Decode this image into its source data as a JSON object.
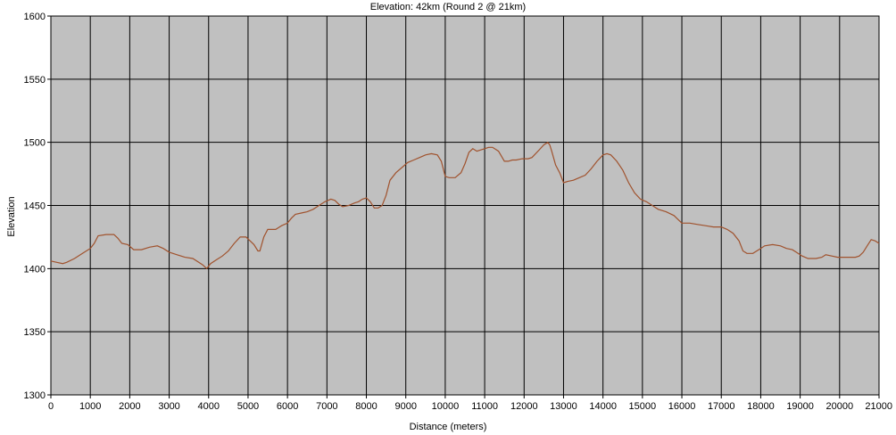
{
  "chart_data": {
    "type": "line",
    "title": "Elevation: 42km (Round 2 @ 21km)",
    "xlabel": "Distance (meters)",
    "ylabel": "Elevation",
    "xlim": [
      0,
      21000
    ],
    "ylim": [
      1300,
      1600
    ],
    "x_ticks": [
      "0",
      "1000",
      "2000",
      "3000",
      "4000",
      "5000",
      "6000",
      "7000",
      "8000",
      "9000",
      "10000",
      "11000",
      "12000",
      "13000",
      "14000",
      "15000",
      "16000",
      "17000",
      "18000",
      "19000",
      "20000",
      "21000"
    ],
    "y_ticks": [
      "1300",
      "1350",
      "1400",
      "1450",
      "1500",
      "1550",
      "1600"
    ],
    "grid": true,
    "plot_background": "#c0c0c0",
    "line_color": "#a0522d",
    "series": [
      {
        "x": [
          0,
          150,
          300,
          400,
          600,
          800,
          1000,
          1100,
          1200,
          1400,
          1600,
          1700,
          1800,
          1950,
          2100,
          2300,
          2500,
          2700,
          2850,
          3000,
          3200,
          3400,
          3600,
          3750,
          3850,
          3950,
          4050,
          4200,
          4350,
          4500,
          4650,
          4800,
          4950,
          5050,
          5150,
          5250,
          5300,
          5400,
          5500,
          5600,
          5700,
          5850,
          6000,
          6100,
          6200,
          6350,
          6500,
          6650,
          6800,
          6950,
          7100,
          7200,
          7300,
          7400,
          7550,
          7700,
          7800,
          7900,
          8000,
          8100,
          8200,
          8300,
          8400,
          8500,
          8600,
          8750,
          8900,
          9050,
          9200,
          9350,
          9500,
          9650,
          9800,
          9900,
          10000,
          10100,
          10250,
          10400,
          10500,
          10600,
          10700,
          10800,
          10900,
          11000,
          11100,
          11200,
          11350,
          11500,
          11600,
          11700,
          11800,
          11950,
          12100,
          12200,
          12350,
          12500,
          12600,
          12650,
          12700,
          12800,
          12900,
          13000,
          13100,
          13250,
          13400,
          13550,
          13700,
          13850,
          14000,
          14100,
          14200,
          14350,
          14500,
          14650,
          14800,
          14950,
          15100,
          15250,
          15400,
          15600,
          15800,
          16000,
          16200,
          16400,
          16600,
          16800,
          17000,
          17150,
          17300,
          17450,
          17550,
          17650,
          17800,
          17900,
          18000,
          18100,
          18300,
          18500,
          18650,
          18800,
          18900,
          19050,
          19200,
          19400,
          19550,
          19650,
          19800,
          19950,
          20100,
          20250,
          20400,
          20500,
          20600,
          20700,
          20800,
          20900,
          21000
        ],
        "values": [
          1406,
          1405,
          1404,
          1405,
          1408,
          1412,
          1416,
          1420,
          1426,
          1427,
          1427,
          1424,
          1420,
          1419,
          1415,
          1415,
          1417,
          1418,
          1416,
          1413,
          1411,
          1409,
          1408,
          1405,
          1403,
          1400,
          1404,
          1407,
          1410,
          1414,
          1420,
          1425,
          1425,
          1422,
          1419,
          1414,
          1414,
          1425,
          1431,
          1431,
          1431,
          1434,
          1436,
          1440,
          1443,
          1444,
          1445,
          1447,
          1450,
          1453,
          1455,
          1454,
          1451,
          1449,
          1450,
          1452,
          1453,
          1455,
          1456,
          1453,
          1448,
          1448,
          1450,
          1458,
          1470,
          1476,
          1480,
          1484,
          1486,
          1488,
          1490,
          1491,
          1490,
          1485,
          1473,
          1472,
          1472,
          1476,
          1483,
          1492,
          1495,
          1493,
          1494,
          1495,
          1496,
          1496,
          1493,
          1485,
          1485,
          1486,
          1486,
          1487,
          1487,
          1488,
          1493,
          1498,
          1500,
          1498,
          1493,
          1482,
          1476,
          1468,
          1469,
          1470,
          1472,
          1474,
          1479,
          1485,
          1490,
          1491,
          1490,
          1485,
          1478,
          1468,
          1460,
          1455,
          1453,
          1450,
          1447,
          1445,
          1442,
          1436,
          1436,
          1435,
          1434,
          1433,
          1433,
          1431,
          1428,
          1422,
          1414,
          1412,
          1412,
          1414,
          1416,
          1418,
          1419,
          1418,
          1416,
          1415,
          1413,
          1410,
          1408,
          1408,
          1409,
          1411,
          1410,
          1409,
          1409,
          1409,
          1409,
          1410,
          1413,
          1418,
          1423,
          1422,
          1420
        ]
      }
    ]
  }
}
